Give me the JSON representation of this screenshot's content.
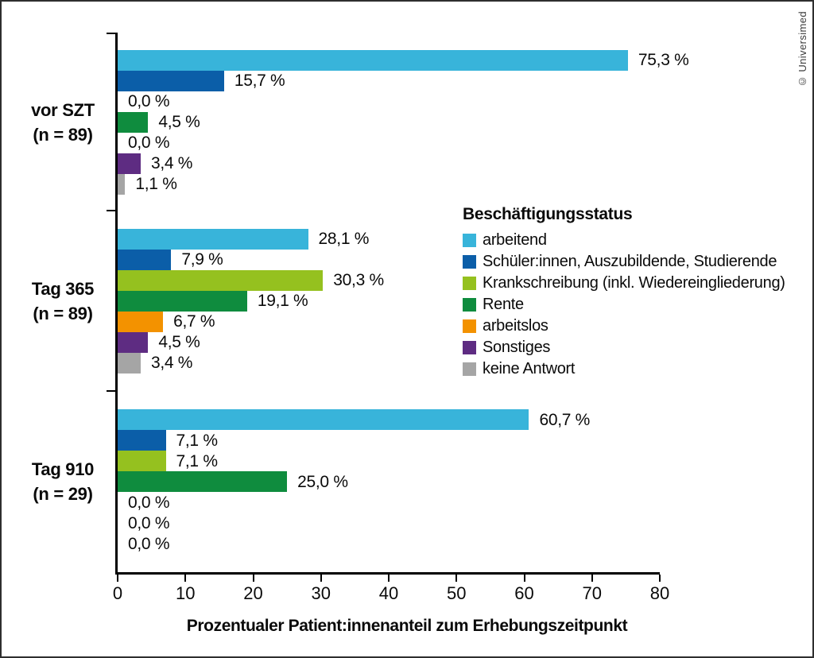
{
  "copyright": "© Universimed",
  "chart_data": {
    "type": "bar",
    "orientation": "horizontal",
    "title": "",
    "xlabel": "Prozentualer Patient:innenanteil zum Erhebungszeitpunkt",
    "ylabel": "",
    "xlim": [
      0,
      80
    ],
    "xticks": [
      "0",
      "10",
      "20",
      "30",
      "40",
      "50",
      "60",
      "70",
      "80"
    ],
    "grid": false,
    "legend": {
      "title": "Beschäftigungsstatus",
      "position": "middle-right",
      "items": [
        {
          "label": "arbeitend",
          "color": "#38b4da"
        },
        {
          "label": "Schüler:innen, Auszubildende, Studierende",
          "color": "#0b5ea8"
        },
        {
          "label": "Krankschreibung (inkl. Wiedereingliederung)",
          "color": "#95c11f"
        },
        {
          "label": "Rente",
          "color": "#0f8c3e"
        },
        {
          "label": "arbeitslos",
          "color": "#f39200"
        },
        {
          "label": "Sonstiges",
          "color": "#5e2c82"
        },
        {
          "label": "keine Antwort",
          "color": "#a5a5a5"
        }
      ]
    },
    "groups": [
      {
        "label": "vor SZT",
        "n_label": "(n = 89)",
        "values": [
          75.3,
          15.7,
          0.0,
          4.5,
          0.0,
          3.4,
          1.1
        ],
        "value_labels": [
          "75,3 %",
          "15,7 %",
          "0,0 %",
          "4,5 %",
          "0,0 %",
          "3,4 %",
          "1,1 %"
        ]
      },
      {
        "label": "Tag 365",
        "n_label": "(n = 89)",
        "values": [
          28.1,
          7.9,
          30.3,
          19.1,
          6.7,
          4.5,
          3.4
        ],
        "value_labels": [
          "28,1 %",
          "7,9 %",
          "30,3 %",
          "19,1 %",
          "6,7 %",
          "4,5 %",
          "3,4 %"
        ]
      },
      {
        "label": "Tag 910",
        "n_label": "(n = 29)",
        "values": [
          60.7,
          7.1,
          7.1,
          25.0,
          0.0,
          0.0,
          0.0
        ],
        "value_labels": [
          "60,7 %",
          "7,1 %",
          "7,1 %",
          "25,0 %",
          "0,0 %",
          "0,0 %",
          "0,0 %"
        ]
      }
    ]
  }
}
